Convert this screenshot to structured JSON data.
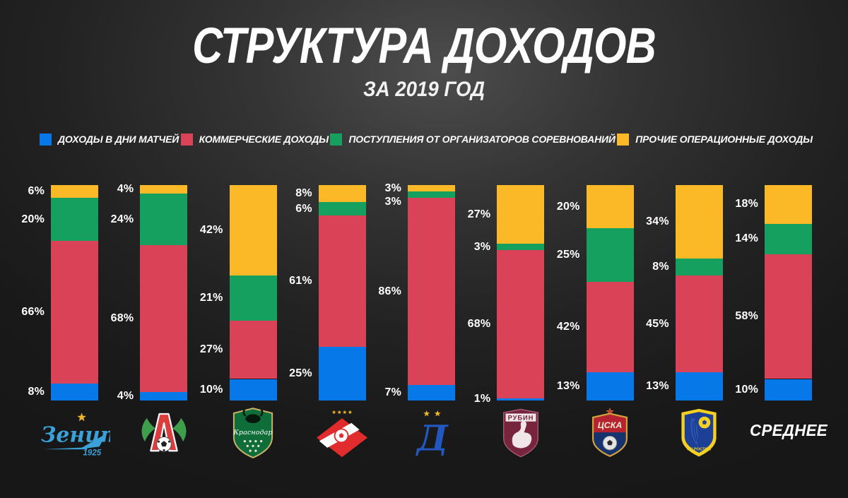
{
  "header": {
    "title": "СТРУКТУРА ДОХОДОВ",
    "subtitle": "ЗА 2019 ГОД"
  },
  "chart_data": {
    "type": "bar",
    "variant": "stacked-100-percent",
    "title": "СТРУКТУРА ДОХОДОВ",
    "subtitle": "ЗА 2019 ГОД",
    "unit": "%",
    "legend_position": "top",
    "grid": false,
    "visual_order_top_to_bottom": [
      "other",
      "competition",
      "commercial",
      "matchday"
    ],
    "series": [
      {
        "id": "matchday",
        "label": "ДОХОДЫ В ДНИ МАТЧЕЙ",
        "color": "#0778e8",
        "values": [
          8,
          4,
          10,
          25,
          7,
          1,
          13,
          13,
          10
        ]
      },
      {
        "id": "commercial",
        "label": "КОММЕРЧЕСКИЕ ДОХОДЫ",
        "color": "#da4258",
        "values": [
          66,
          68,
          27,
          61,
          86,
          68,
          42,
          45,
          58
        ]
      },
      {
        "id": "competition",
        "label": "ПОСТУПЛЕНИЯ ОТ ОРГАНИЗАТОРОВ СОРЕВНОВАНИЙ",
        "color": "#16a05f",
        "values": [
          20,
          24,
          21,
          6,
          3,
          3,
          25,
          8,
          14
        ]
      },
      {
        "id": "other",
        "label": "ПРОЧИЕ ОПЕРАЦИОННЫЕ ДОХОДЫ",
        "color": "#fbb827",
        "values": [
          6,
          4,
          42,
          8,
          3,
          27,
          20,
          34,
          18
        ]
      }
    ],
    "categories": [
      {
        "id": "zenit",
        "name": "Зенит",
        "logo_text": {
          "script": "Зенит",
          "year": "1925"
        }
      },
      {
        "id": "lokomotiv",
        "name": "Локомотив",
        "logo_text": {
          "letter": "Л"
        }
      },
      {
        "id": "krasnodar",
        "name": "Краснодар",
        "logo_text": {
          "script": "Краснодар"
        }
      },
      {
        "id": "spartak",
        "name": "Спартак",
        "logo_text": {}
      },
      {
        "id": "dinamo",
        "name": "Динамо",
        "logo_text": {
          "letter": "Д"
        }
      },
      {
        "id": "rubin",
        "name": "Рубин",
        "logo_text": {
          "name": "РУБИН"
        }
      },
      {
        "id": "cska",
        "name": "ЦСКА",
        "logo_text": {
          "name": "ЦСКА"
        }
      },
      {
        "id": "rostov",
        "name": "Ростов",
        "logo_text": {
          "name": "ФК РОСТОВ"
        }
      },
      {
        "id": "average",
        "name": "СРЕДНЕЕ"
      }
    ]
  }
}
